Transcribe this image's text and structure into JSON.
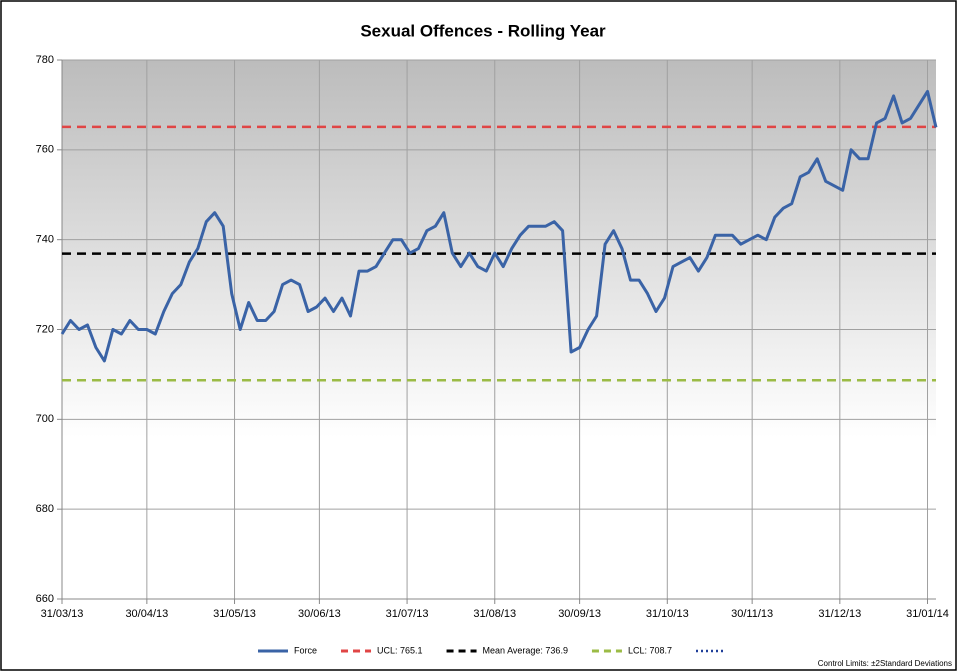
{
  "chart_data": {
    "type": "line",
    "title": "Sexual Offences - Rolling Year",
    "x": [
      "31/03/13",
      "03/04/13",
      "06/04/13",
      "09/04/13",
      "12/04/13",
      "15/04/13",
      "18/04/13",
      "21/04/13",
      "24/04/13",
      "27/04/13",
      "30/04/13",
      "03/05/13",
      "06/05/13",
      "09/05/13",
      "12/05/13",
      "15/05/13",
      "18/05/13",
      "21/05/13",
      "24/05/13",
      "27/05/13",
      "30/05/13",
      "02/06/13",
      "05/06/13",
      "08/06/13",
      "11/06/13",
      "14/06/13",
      "17/06/13",
      "20/06/13",
      "23/06/13",
      "26/06/13",
      "29/06/13",
      "02/07/13",
      "05/07/13",
      "08/07/13",
      "11/07/13",
      "14/07/13",
      "17/07/13",
      "20/07/13",
      "23/07/13",
      "26/07/13",
      "29/07/13",
      "01/08/13",
      "04/08/13",
      "07/08/13",
      "10/08/13",
      "13/08/13",
      "16/08/13",
      "19/08/13",
      "22/08/13",
      "25/08/13",
      "28/08/13",
      "31/08/13",
      "03/09/13",
      "06/09/13",
      "09/09/13",
      "12/09/13",
      "15/09/13",
      "18/09/13",
      "21/09/13",
      "24/09/13",
      "27/09/13",
      "30/09/13",
      "03/10/13",
      "06/10/13",
      "09/10/13",
      "12/10/13",
      "15/10/13",
      "18/10/13",
      "21/10/13",
      "24/10/13",
      "27/10/13",
      "30/10/13",
      "02/11/13",
      "05/11/13",
      "08/11/13",
      "11/11/13",
      "14/11/13",
      "17/11/13",
      "20/11/13",
      "23/11/13",
      "26/11/13",
      "29/11/13",
      "02/12/13",
      "05/12/13",
      "08/12/13",
      "11/12/13",
      "14/12/13",
      "17/12/13",
      "20/12/13",
      "23/12/13",
      "26/12/13",
      "29/12/13",
      "01/01/14",
      "04/01/14",
      "07/01/14",
      "10/01/14",
      "13/01/14",
      "16/01/14",
      "19/01/14",
      "22/01/14",
      "25/01/14",
      "28/01/14",
      "31/01/14",
      "03/02/14"
    ],
    "series": [
      {
        "name": "Force",
        "color": "#3a63a6",
        "values": [
          719,
          722,
          720,
          721,
          716,
          713,
          720,
          719,
          722,
          720,
          720,
          719,
          724,
          728,
          730,
          735,
          738,
          744,
          746,
          743,
          728,
          720,
          726,
          722,
          722,
          724,
          730,
          731,
          730,
          724,
          725,
          727,
          724,
          727,
          723,
          733,
          733,
          734,
          737,
          740,
          740,
          737,
          738,
          742,
          743,
          746,
          737,
          734,
          737,
          734,
          733,
          737,
          734,
          738,
          741,
          743,
          743,
          743,
          744,
          742,
          715,
          716,
          720,
          723,
          739,
          742,
          738,
          731,
          731,
          728,
          724,
          727,
          734,
          735,
          736,
          733,
          736,
          741,
          741,
          741,
          739,
          740,
          741,
          740,
          745,
          747,
          748,
          754,
          755,
          758,
          753,
          752,
          751,
          760,
          758,
          758,
          766,
          767,
          772,
          766,
          767,
          770,
          773,
          765
        ]
      }
    ],
    "reference_lines": [
      {
        "name": "UCL: 765.1",
        "value": 765.1,
        "color": "#e04545"
      },
      {
        "name": "Mean Average: 736.9",
        "value": 736.9,
        "color": "#000000"
      },
      {
        "name": "LCL: 708.7",
        "value": 708.7,
        "color": "#9bbb45"
      }
    ],
    "xlim": [
      "31/03/13",
      "03/02/14"
    ],
    "xticks": [
      "31/03/13",
      "30/04/13",
      "31/05/13",
      "30/06/13",
      "31/07/13",
      "31/08/13",
      "30/09/13",
      "31/10/13",
      "30/11/13",
      "31/12/13",
      "31/01/14"
    ],
    "ylim": [
      660,
      780
    ],
    "yticks": [
      660,
      680,
      700,
      720,
      740,
      760,
      780
    ],
    "grid": true,
    "footnote": "Control Limits: ±2Standard Deviations"
  }
}
